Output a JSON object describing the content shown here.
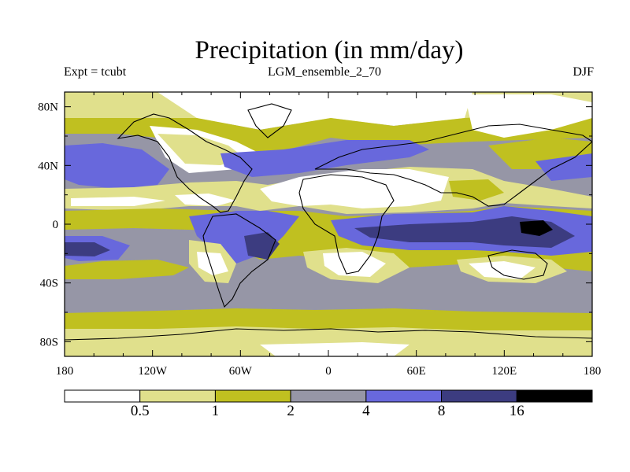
{
  "chart_data": {
    "type": "heatmap",
    "title": "Precipitation (in mm/day)",
    "left_label": "Expt = tcubt",
    "center_label": "LGM_ensemble_2_70",
    "right_label": "DJF",
    "x_ticks": [
      "180",
      "120W",
      "60W",
      "0",
      "60E",
      "120E",
      "180"
    ],
    "x_tick_values": [
      -180,
      -120,
      -60,
      0,
      60,
      120,
      180
    ],
    "y_ticks": [
      "80N",
      "40N",
      "0",
      "40S",
      "80S"
    ],
    "y_tick_values": [
      80,
      40,
      0,
      -40,
      -80
    ],
    "xlim": [
      -180,
      180
    ],
    "ylim": [
      -90,
      90
    ],
    "colorbar": {
      "boundaries": [
        "0.5",
        "1",
        "2",
        "4",
        "8",
        "16"
      ],
      "colors": [
        "#ffffff",
        "#e0e08c",
        "#c0c020",
        "#9696a6",
        "#6868dc",
        "#3c3c80",
        "#000000"
      ]
    }
  }
}
